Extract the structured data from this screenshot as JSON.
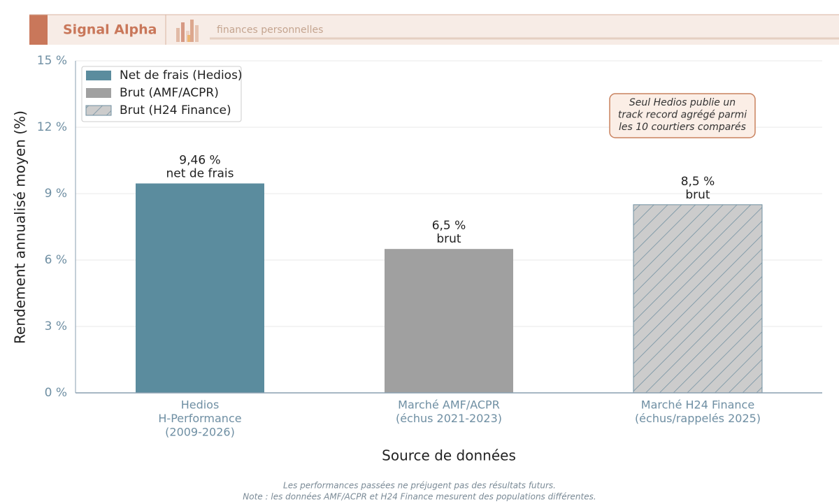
{
  "header": {
    "brand": "Signal Alpha",
    "tagline": "finances personnelles"
  },
  "chart_data": {
    "type": "bar",
    "categories": [
      [
        "Hedios",
        "H-Performance",
        "(2009-2026)"
      ],
      [
        "Marché AMF/ACPR",
        "(échus 2021-2023)"
      ],
      [
        "Marché H24 Finance",
        "(échus/rappelés 2025)"
      ]
    ],
    "series": [
      {
        "name": "Net de frais (Hedios)",
        "color": "#5b8c9e",
        "values": [
          9.46,
          null,
          null
        ],
        "value_labels": [
          "9,46 %",
          null,
          null
        ],
        "sublabels": [
          "net de frais",
          null,
          null
        ]
      },
      {
        "name": "Brut (AMF/ACPR)",
        "color": "#a0a0a0",
        "values": [
          null,
          6.5,
          null
        ],
        "value_labels": [
          null,
          "6,5 %",
          null
        ],
        "sublabels": [
          null,
          "brut",
          null
        ]
      },
      {
        "name": "Brut (H24 Finance)",
        "color": "#cccccc",
        "hatch": "#6f8fa0",
        "values": [
          null,
          null,
          8.5
        ],
        "value_labels": [
          null,
          null,
          "8,5 %"
        ],
        "sublabels": [
          null,
          null,
          "brut"
        ]
      }
    ],
    "ylim": [
      0,
      15
    ],
    "yticks": [
      {
        "value": 0,
        "label": "0 %"
      },
      {
        "value": 3,
        "label": "3 %"
      },
      {
        "value": 6,
        "label": "6 %"
      },
      {
        "value": 9,
        "label": "9 %"
      },
      {
        "value": 12,
        "label": "12 %"
      },
      {
        "value": 15,
        "label": "15 %"
      }
    ],
    "grid": true,
    "legend": "upper left",
    "y_label": "Rendement annualisé moyen (%)",
    "x_label": "Source de données",
    "annotation": [
      "Seul Hedios publie un",
      "track record agrégé parmi",
      "les 10 courtiers comparés"
    ]
  },
  "footer": [
    "Les performances passées ne préjugent pas des résultats futurs.",
    "Note : les données AMF/ACPR et H24 Finance mesurent des populations différentes."
  ]
}
